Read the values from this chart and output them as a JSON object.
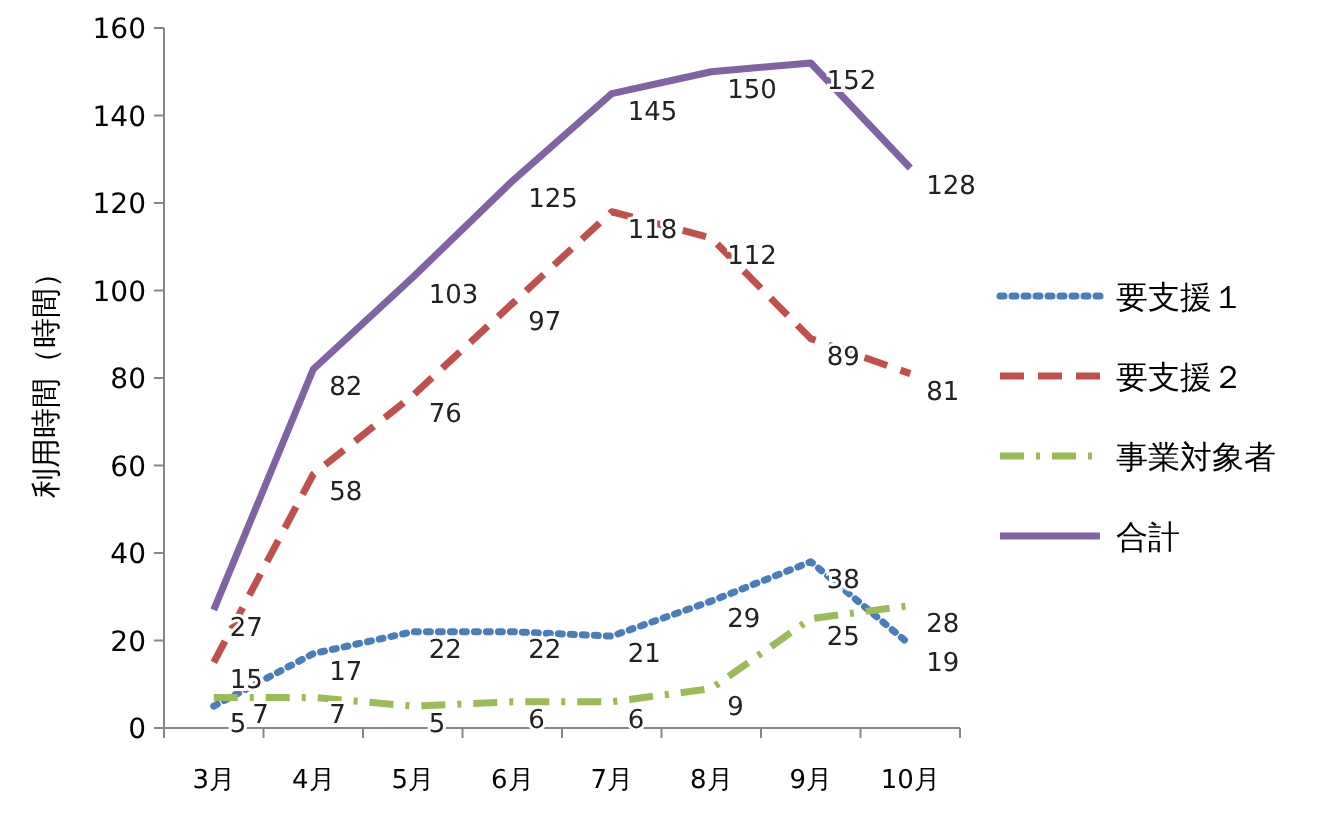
{
  "chart_data": {
    "type": "line",
    "ylabel": "利用時間（時間）",
    "categories": [
      "3月",
      "4月",
      "5月",
      "6月",
      "7月",
      "8月",
      "9月",
      "10月"
    ],
    "series": [
      {
        "name": "要支援１",
        "color": "#4a7ebb",
        "line_style": "dotted",
        "values": [
          5,
          17,
          22,
          22,
          21,
          29,
          38,
          19
        ]
      },
      {
        "name": "要支援２",
        "color": "#c0504d",
        "line_style": "dashed",
        "values": [
          15,
          58,
          76,
          97,
          118,
          112,
          89,
          81
        ]
      },
      {
        "name": "事業対象者",
        "color": "#9bbb59",
        "line_style": "dashdot",
        "values": [
          7,
          7,
          5,
          6,
          6,
          9,
          25,
          28
        ]
      },
      {
        "name": "合計",
        "color": "#7f63a2",
        "line_style": "solid",
        "values": [
          27,
          82,
          103,
          125,
          145,
          150,
          152,
          128
        ]
      }
    ],
    "ylim": [
      0,
      160
    ],
    "yticks": [
      0,
      20,
      40,
      60,
      80,
      100,
      120,
      140,
      160
    ],
    "grid": false,
    "legend": "right",
    "data_labels": true,
    "marker": "none"
  }
}
